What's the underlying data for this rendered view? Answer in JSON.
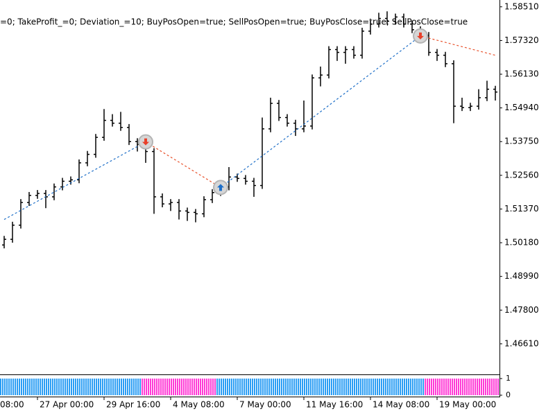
{
  "chart_data": {
    "type": "ohlc",
    "subtitle": "=0; TakeProfit_=0; Deviation_=10; BuyPosOpen=true; SellPosOpen=true; BuyPosClose=true; SellPosClose=true",
    "color": "#000000",
    "open": [
      1.501,
      1.503,
      1.508,
      1.516,
      1.5185,
      1.5192,
      1.518,
      1.5215,
      1.5235,
      1.524,
      1.53,
      1.533,
      1.539,
      1.545,
      1.544,
      1.5425,
      1.5375,
      1.5365,
      1.534,
      1.518,
      1.5155,
      1.516,
      1.513,
      1.5125,
      1.512,
      1.517,
      1.5195,
      1.5215,
      1.525,
      1.5245,
      1.5235,
      1.522,
      1.542,
      1.551,
      1.546,
      1.544,
      1.542,
      1.543,
      1.56,
      1.561,
      1.57,
      1.569,
      1.57,
      1.568,
      1.5765,
      1.579,
      1.581,
      1.58,
      1.5815,
      1.579,
      1.577,
      1.575,
      1.569,
      1.568,
      1.565,
      1.55,
      1.5495,
      1.55,
      1.553,
      1.556
    ],
    "high": [
      1.5042,
      1.5092,
      1.5172,
      1.5197,
      1.5204,
      1.5204,
      1.5227,
      1.5247,
      1.5252,
      1.5312,
      1.5342,
      1.5402,
      1.549,
      1.5472,
      1.548,
      1.5437,
      1.5387,
      1.5377,
      1.5352,
      1.5192,
      1.5172,
      1.5172,
      1.5142,
      1.5137,
      1.5182,
      1.5207,
      1.523,
      1.5285,
      1.5262,
      1.5257,
      1.5247,
      1.546,
      1.553,
      1.5522,
      1.5472,
      1.5452,
      1.552,
      1.5612,
      1.564,
      1.5712,
      1.5712,
      1.5712,
      1.5712,
      1.5777,
      1.5802,
      1.583,
      1.5835,
      1.5827,
      1.5827,
      1.5802,
      1.5782,
      1.5762,
      1.5702,
      1.5692,
      1.5662,
      1.553,
      1.5512,
      1.556,
      1.559,
      1.5572
    ],
    "low": [
      1.4998,
      1.5018,
      1.5068,
      1.5148,
      1.5173,
      1.514,
      1.5168,
      1.5203,
      1.5223,
      1.5228,
      1.5288,
      1.5318,
      1.5378,
      1.5428,
      1.5413,
      1.5363,
      1.534,
      1.53,
      1.512,
      1.5143,
      1.513,
      1.51,
      1.5095,
      1.509,
      1.5108,
      1.5158,
      1.5183,
      1.5203,
      1.5233,
      1.5223,
      1.518,
      1.5208,
      1.5408,
      1.5448,
      1.5428,
      1.5395,
      1.5408,
      1.5418,
      1.557,
      1.5598,
      1.566,
      1.565,
      1.5668,
      1.5668,
      1.5753,
      1.5778,
      1.5788,
      1.5788,
      1.5778,
      1.5758,
      1.5738,
      1.5678,
      1.566,
      1.5638,
      1.544,
      1.5483,
      1.5483,
      1.5488,
      1.5518,
      1.552
    ],
    "close": [
      1.503,
      1.508,
      1.516,
      1.5185,
      1.5192,
      1.518,
      1.5215,
      1.5235,
      1.524,
      1.53,
      1.533,
      1.539,
      1.545,
      1.544,
      1.5425,
      1.5375,
      1.5365,
      1.534,
      1.518,
      1.5155,
      1.516,
      1.513,
      1.5125,
      1.512,
      1.517,
      1.5195,
      1.5215,
      1.525,
      1.5245,
      1.5235,
      1.522,
      1.542,
      1.551,
      1.546,
      1.544,
      1.542,
      1.543,
      1.56,
      1.561,
      1.57,
      1.569,
      1.57,
      1.568,
      1.5765,
      1.579,
      1.581,
      1.58,
      1.5815,
      1.579,
      1.577,
      1.575,
      1.569,
      1.568,
      1.565,
      1.55,
      1.5495,
      1.55,
      1.553,
      1.556,
      1.555
    ],
    "ylim": [
      1.4553,
      1.5875
    ],
    "yticks": [
      {
        "value": 1.4661,
        "label": "1.46610"
      },
      {
        "value": 1.478,
        "label": "1.47800"
      },
      {
        "value": 1.4899,
        "label": "1.48990"
      },
      {
        "value": 1.5018,
        "label": "1.50180"
      },
      {
        "value": 1.5137,
        "label": "1.51370"
      },
      {
        "value": 1.5256,
        "label": "1.52560"
      },
      {
        "value": 1.5375,
        "label": "1.53750"
      },
      {
        "value": 1.5494,
        "label": "1.54940"
      },
      {
        "value": 1.5613,
        "label": "1.56130"
      },
      {
        "value": 1.5732,
        "label": "1.57320"
      },
      {
        "value": 1.5851,
        "label": "1.58510"
      }
    ],
    "xticks": [
      {
        "value": -4,
        "label": "08:00"
      },
      {
        "value": 4,
        "label": "27 Apr 00:00"
      },
      {
        "value": 12,
        "label": "29 Apr 16:00"
      },
      {
        "value": 20,
        "label": "4 May 08:00"
      },
      {
        "value": 28,
        "label": "7 May 00:00"
      },
      {
        "value": 36,
        "label": "11 May 16:00"
      },
      {
        "value": 44,
        "label": "14 May 08:00"
      },
      {
        "value": 52,
        "label": "19 May 00:00"
      }
    ],
    "trade_line": {
      "x": [
        0,
        17,
        26,
        50,
        59
      ],
      "y": [
        1.51,
        1.5374,
        1.5213,
        1.5748,
        1.568
      ],
      "colors": [
        "#1e6fc8",
        "#e8502a",
        "#1e6fc8",
        "#e8502a"
      ]
    },
    "deals": [
      {
        "x": 17,
        "price": 1.5374,
        "direction": "sell"
      },
      {
        "x": 26,
        "price": 1.5213,
        "direction": "buy"
      },
      {
        "x": 50,
        "price": 1.5748,
        "direction": "sell"
      }
    ],
    "indicator": {
      "ylim": [
        0,
        1
      ],
      "yticks": [
        0,
        1
      ],
      "segments": [
        {
          "from": -1,
          "to": 16,
          "color": "#2a9df4"
        },
        {
          "from": 16,
          "to": 25,
          "color": "#ff3ad6"
        },
        {
          "from": 25,
          "to": 50,
          "color": "#2a9df4"
        },
        {
          "from": 50,
          "to": 60,
          "color": "#ff3ad6"
        }
      ]
    }
  }
}
